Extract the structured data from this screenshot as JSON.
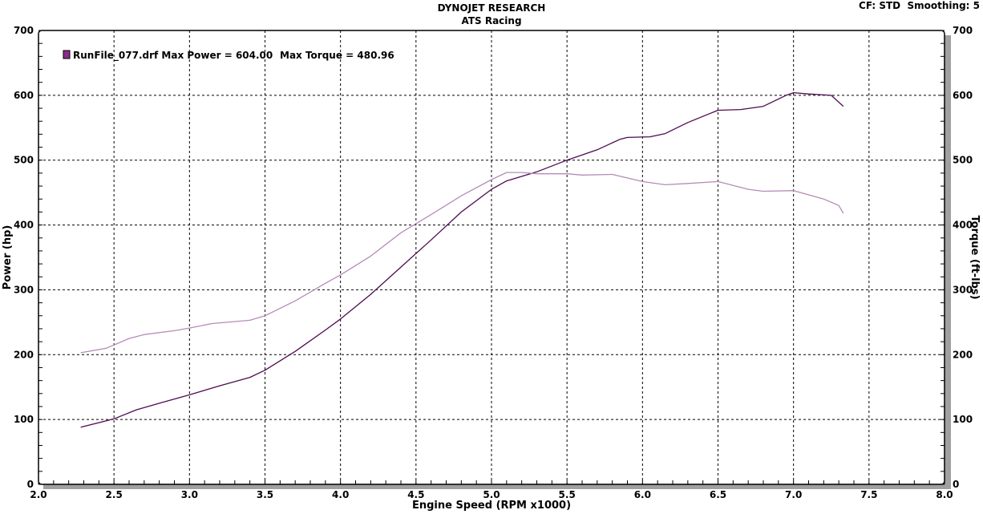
{
  "header": {
    "title": "DYNOJET RESEARCH",
    "subtitle": "ATS Racing",
    "settings": "CF: STD  Smoothing: 5"
  },
  "legend": {
    "run_label": "RunFile_077.drf Max Power = 604.00",
    "torque_label": "Max Torque = 480.96",
    "swatch_color": "#8a2a8a"
  },
  "chart_data": {
    "type": "line",
    "xlabel": "Engine Speed (RPM x1000)",
    "ylabel": "Power (hp)",
    "y2label": "Torque (ft-lbs)",
    "xlim": [
      2.0,
      8.0
    ],
    "ylim": [
      0,
      700
    ],
    "y2lim": [
      0,
      700
    ],
    "grid": true,
    "legend_position": "top-left",
    "x_ticks": [
      "2.0",
      "2.5",
      "3.0",
      "3.5",
      "4.0",
      "4.5",
      "5.0",
      "5.5",
      "6.0",
      "6.5",
      "7.0",
      "7.5",
      "8.0"
    ],
    "y_ticks": [
      "0",
      "100",
      "200",
      "300",
      "400",
      "500",
      "600",
      "700"
    ],
    "series": [
      {
        "key": "power",
        "color": "#4e0b50",
        "x": [
          2.28,
          2.5,
          2.65,
          2.8,
          3.0,
          3.2,
          3.4,
          3.5,
          3.7,
          3.9,
          4.0,
          4.2,
          4.4,
          4.6,
          4.8,
          5.0,
          5.1,
          5.3,
          5.5,
          5.7,
          5.85,
          5.9,
          6.05,
          6.15,
          6.3,
          6.5,
          6.65,
          6.8,
          6.95,
          7.0,
          7.1,
          7.25,
          7.33
        ],
        "y": [
          88,
          101,
          115,
          125,
          138,
          152,
          165,
          176,
          205,
          238,
          255,
          293,
          335,
          377,
          420,
          455,
          468,
          482,
          500,
          516,
          532,
          535,
          536,
          541,
          558,
          577,
          578,
          583,
          600,
          604,
          602,
          600,
          583
        ]
      },
      {
        "key": "torque",
        "color": "#b58cb8",
        "x": [
          2.28,
          2.45,
          2.6,
          2.7,
          2.9,
          3.0,
          3.15,
          3.4,
          3.5,
          3.7,
          3.9,
          4.0,
          4.2,
          4.4,
          4.6,
          4.8,
          5.0,
          5.1,
          5.2,
          5.3,
          5.5,
          5.6,
          5.8,
          6.0,
          6.15,
          6.3,
          6.5,
          6.7,
          6.8,
          7.0,
          7.2,
          7.3,
          7.33
        ],
        "y": [
          203,
          210,
          225,
          231,
          237,
          241,
          248,
          253,
          260,
          283,
          310,
          323,
          352,
          388,
          416,
          445,
          470,
          481,
          481,
          479,
          479,
          477,
          478,
          467,
          462,
          464,
          467,
          455,
          452,
          453,
          440,
          430,
          418
        ]
      }
    ]
  }
}
